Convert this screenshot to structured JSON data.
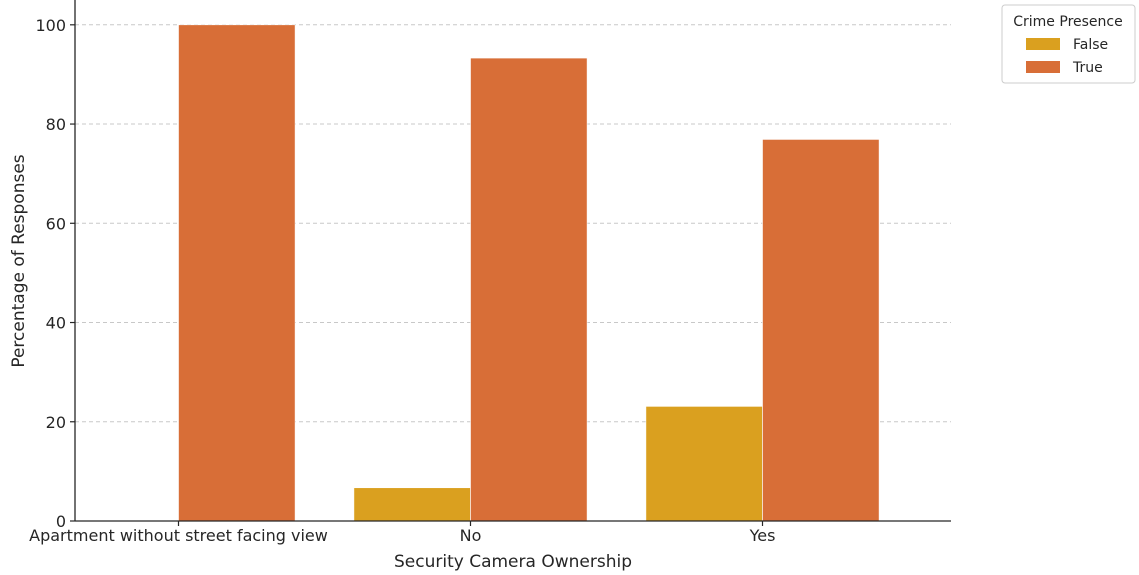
{
  "chart_data": {
    "type": "bar",
    "title": "",
    "xlabel": "Security Camera Ownership",
    "ylabel": "Percentage of Responses",
    "categories": [
      "Apartment without street facing view",
      "No",
      "Yes"
    ],
    "series": [
      {
        "name": "False",
        "color": "#DAA01F",
        "values": [
          0,
          6.7,
          23.1
        ]
      },
      {
        "name": "True",
        "color": "#D86E37",
        "values": [
          100,
          93.3,
          76.9
        ]
      }
    ],
    "ylim": [
      0,
      105
    ],
    "yticks": [
      0,
      20,
      40,
      60,
      80,
      100
    ],
    "grid": "y-dashed",
    "legend": {
      "title": "Crime Presence",
      "placement": "outside-top-right"
    }
  }
}
